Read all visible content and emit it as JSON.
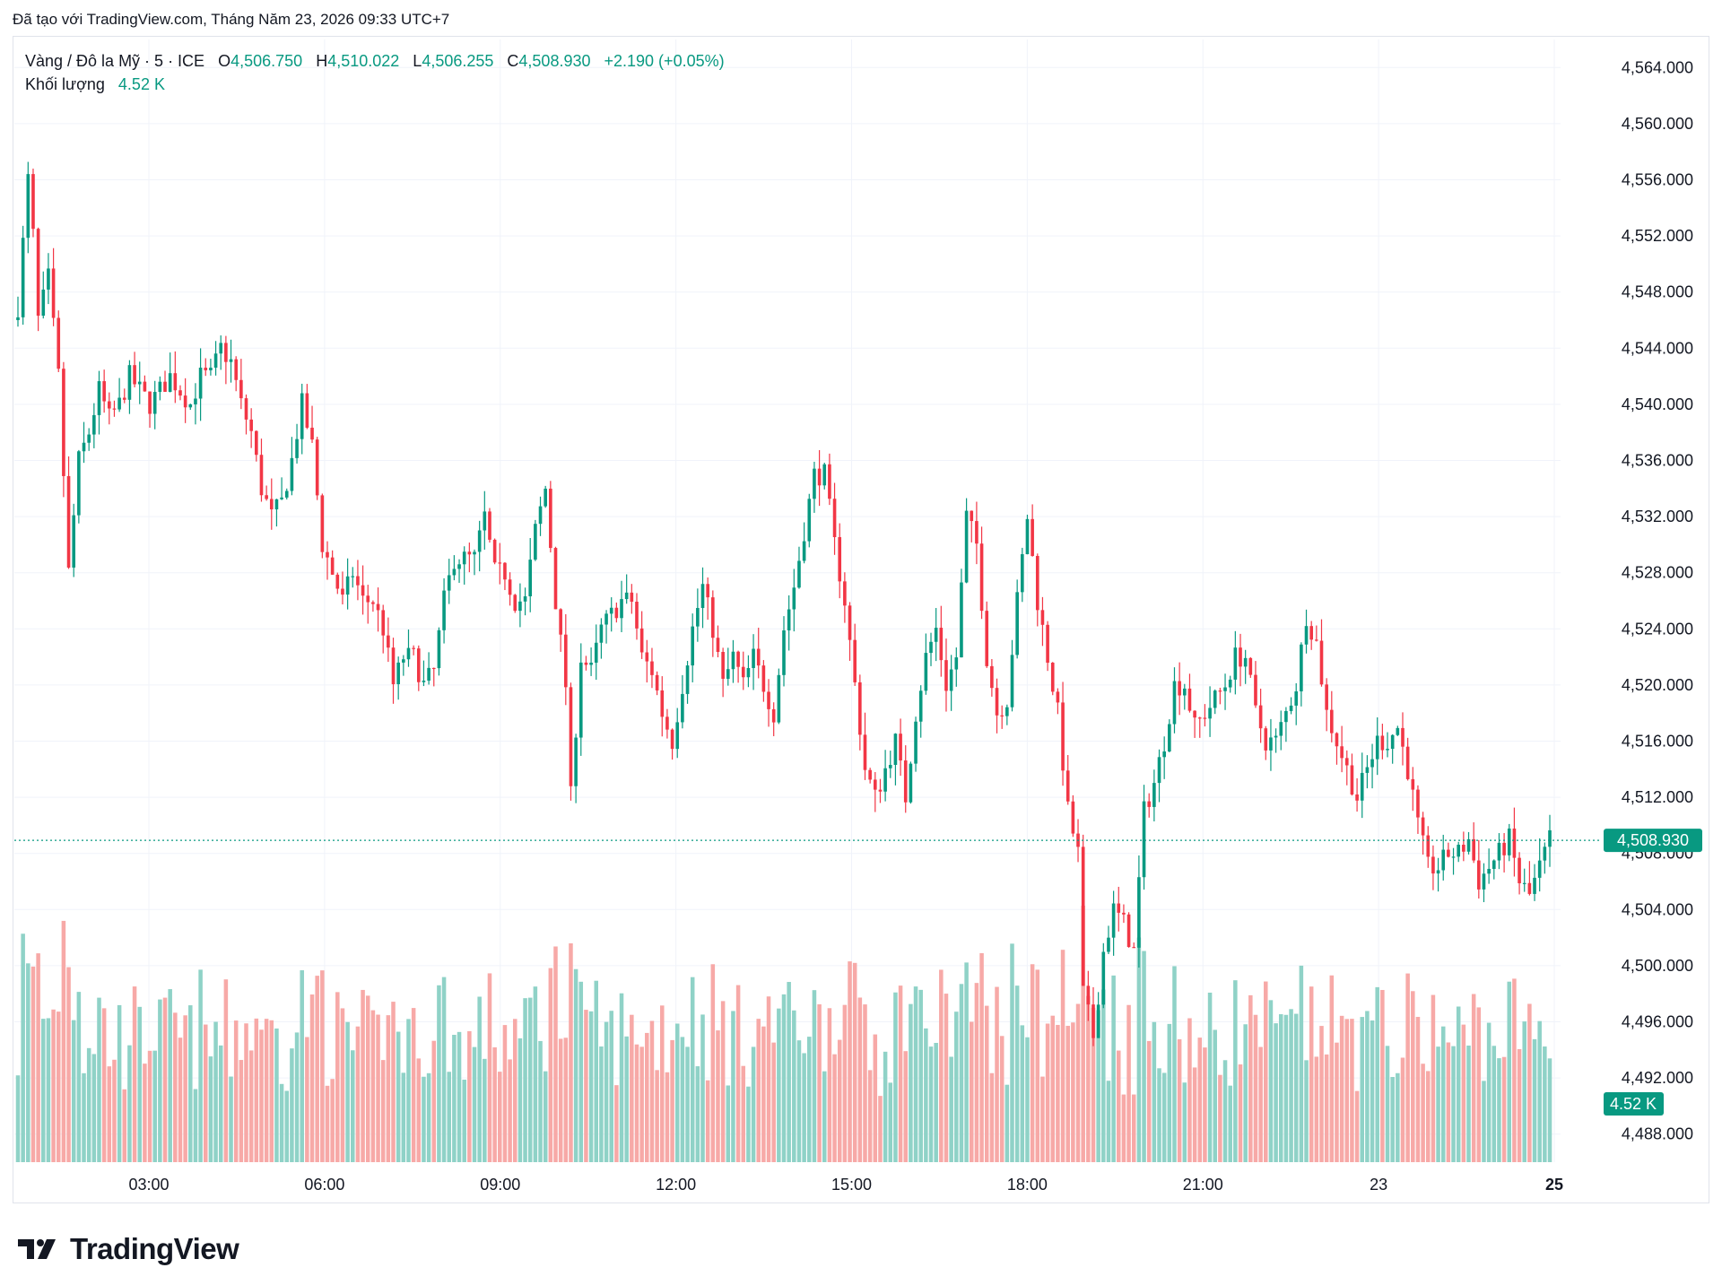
{
  "header": {
    "caption": "Đã tạo với TradingView.com, Tháng Năm 23, 2026 09:33 UTC+7"
  },
  "legend": {
    "symbol": "Vàng / Đô la Mỹ · 5 · ICE",
    "o_label": "O",
    "o_value": "4,506.750",
    "h_label": "H",
    "h_value": "4,510.022",
    "l_label": "L",
    "l_value": "4,506.255",
    "c_label": "C",
    "c_value": "4,508.930",
    "change": "+2.190 (+0.05%)",
    "volume_label": "Khối lượng",
    "volume_value": "4.52 K"
  },
  "brand": {
    "name": "TradingView"
  },
  "colors": {
    "up": "#089981",
    "down": "#f23645",
    "up_vol": "#8fd2c7",
    "down_vol": "#f7a9a7",
    "grid": "#f0f3fa",
    "axis_text": "#131722"
  },
  "chart_data": {
    "type": "candlestick",
    "symbol": "Vàng / Đô la Mỹ",
    "interval": "5",
    "price_axis": {
      "min": 4486,
      "max": 4566,
      "ticks": [
        "4,488.000",
        "4,492.000",
        "4,496.000",
        "4,500.000",
        "4,504.000",
        "4,508.000",
        "4,512.000",
        "4,516.000",
        "4,520.000",
        "4,524.000",
        "4,528.000",
        "4,532.000",
        "4,536.000",
        "4,540.000",
        "4,544.000",
        "4,548.000",
        "4,552.000",
        "4,556.000",
        "4,560.000",
        "4,564.000"
      ]
    },
    "time_axis_labels": [
      "03:00",
      "06:00",
      "09:00",
      "12:00",
      "15:00",
      "18:00",
      "21:00",
      "23",
      "25"
    ],
    "last_price": 4508.93,
    "last_price_label": "4,508.930",
    "last_volume_label": "4.52 K",
    "grid": true,
    "price_path": [
      [
        0,
        4547
      ],
      [
        2,
        4556
      ],
      [
        3,
        4552
      ],
      [
        4,
        4546
      ],
      [
        6,
        4549
      ],
      [
        8,
        4542
      ],
      [
        10,
        4528
      ],
      [
        12,
        4536
      ],
      [
        14,
        4538
      ],
      [
        16,
        4541
      ],
      [
        18,
        4539
      ],
      [
        20,
        4540
      ],
      [
        22,
        4542
      ],
      [
        24,
        4541
      ],
      [
        26,
        4540
      ],
      [
        28,
        4541
      ],
      [
        30,
        4542
      ],
      [
        32,
        4541
      ],
      [
        34,
        4540
      ],
      [
        36,
        4542
      ],
      [
        38,
        4542
      ],
      [
        40,
        4544
      ],
      [
        42,
        4543
      ],
      [
        44,
        4540
      ],
      [
        46,
        4538
      ],
      [
        48,
        4534
      ],
      [
        50,
        4532
      ],
      [
        52,
        4533
      ],
      [
        54,
        4536
      ],
      [
        56,
        4540
      ],
      [
        58,
        4537
      ],
      [
        60,
        4530
      ],
      [
        62,
        4528
      ],
      [
        64,
        4526
      ],
      [
        66,
        4528
      ],
      [
        68,
        4526
      ],
      [
        70,
        4526
      ],
      [
        72,
        4524
      ],
      [
        74,
        4520
      ],
      [
        76,
        4522
      ],
      [
        78,
        4522
      ],
      [
        80,
        4520
      ],
      [
        82,
        4521
      ],
      [
        84,
        4526
      ],
      [
        86,
        4529
      ],
      [
        88,
        4529
      ],
      [
        90,
        4529
      ],
      [
        92,
        4532
      ],
      [
        94,
        4528
      ],
      [
        96,
        4528
      ],
      [
        98,
        4526
      ],
      [
        100,
        4526
      ],
      [
        102,
        4531
      ],
      [
        104,
        4534
      ],
      [
        106,
        4526
      ],
      [
        108,
        4520
      ],
      [
        109,
        4512
      ],
      [
        111,
        4522
      ],
      [
        113,
        4521
      ],
      [
        115,
        4524
      ],
      [
        117,
        4525
      ],
      [
        119,
        4526
      ],
      [
        121,
        4526
      ],
      [
        123,
        4522
      ],
      [
        125,
        4521
      ],
      [
        127,
        4518
      ],
      [
        129,
        4516
      ],
      [
        131,
        4520
      ],
      [
        133,
        4524
      ],
      [
        135,
        4527
      ],
      [
        137,
        4524
      ],
      [
        139,
        4520
      ],
      [
        141,
        4522
      ],
      [
        143,
        4520
      ],
      [
        145,
        4522
      ],
      [
        147,
        4520
      ],
      [
        149,
        4518
      ],
      [
        151,
        4524
      ],
      [
        153,
        4527
      ],
      [
        155,
        4531
      ],
      [
        157,
        4535
      ],
      [
        159,
        4535
      ],
      [
        161,
        4530
      ],
      [
        163,
        4526
      ],
      [
        165,
        4520
      ],
      [
        167,
        4514
      ],
      [
        169,
        4512
      ],
      [
        171,
        4514
      ],
      [
        173,
        4516
      ],
      [
        175,
        4512
      ],
      [
        177,
        4518
      ],
      [
        179,
        4522
      ],
      [
        181,
        4524
      ],
      [
        183,
        4520
      ],
      [
        185,
        4522
      ],
      [
        187,
        4532
      ],
      [
        189,
        4530
      ],
      [
        191,
        4522
      ],
      [
        193,
        4518
      ],
      [
        195,
        4519
      ],
      [
        197,
        4526
      ],
      [
        199,
        4532
      ],
      [
        201,
        4526
      ],
      [
        203,
        4522
      ],
      [
        205,
        4518
      ],
      [
        207,
        4511
      ],
      [
        209,
        4508
      ],
      [
        210,
        4498
      ],
      [
        212,
        4495
      ],
      [
        214,
        4501
      ],
      [
        216,
        4504
      ],
      [
        218,
        4503
      ],
      [
        220,
        4501
      ],
      [
        222,
        4511
      ],
      [
        224,
        4513
      ],
      [
        226,
        4516
      ],
      [
        228,
        4520
      ],
      [
        230,
        4520
      ],
      [
        232,
        4517
      ],
      [
        234,
        4518
      ],
      [
        236,
        4519
      ],
      [
        238,
        4520
      ],
      [
        240,
        4522
      ],
      [
        242,
        4522
      ],
      [
        244,
        4518
      ],
      [
        246,
        4516
      ],
      [
        248,
        4516
      ],
      [
        250,
        4518
      ],
      [
        252,
        4520
      ],
      [
        254,
        4525
      ],
      [
        256,
        4523
      ],
      [
        258,
        4518
      ],
      [
        260,
        4516
      ],
      [
        262,
        4514
      ],
      [
        264,
        4512
      ],
      [
        266,
        4514
      ],
      [
        268,
        4516
      ],
      [
        270,
        4516
      ],
      [
        272,
        4517
      ],
      [
        274,
        4514
      ],
      [
        276,
        4510
      ],
      [
        278,
        4507
      ],
      [
        280,
        4507
      ],
      [
        282,
        4508
      ],
      [
        284,
        4508
      ],
      [
        286,
        4509
      ],
      [
        288,
        4506
      ],
      [
        290,
        4507
      ],
      [
        292,
        4508
      ],
      [
        294,
        4509
      ],
      [
        296,
        4506
      ],
      [
        298,
        4505
      ],
      [
        300,
        4507
      ],
      [
        302,
        4509
      ]
    ],
    "x_range": [
      0,
      302
    ]
  }
}
